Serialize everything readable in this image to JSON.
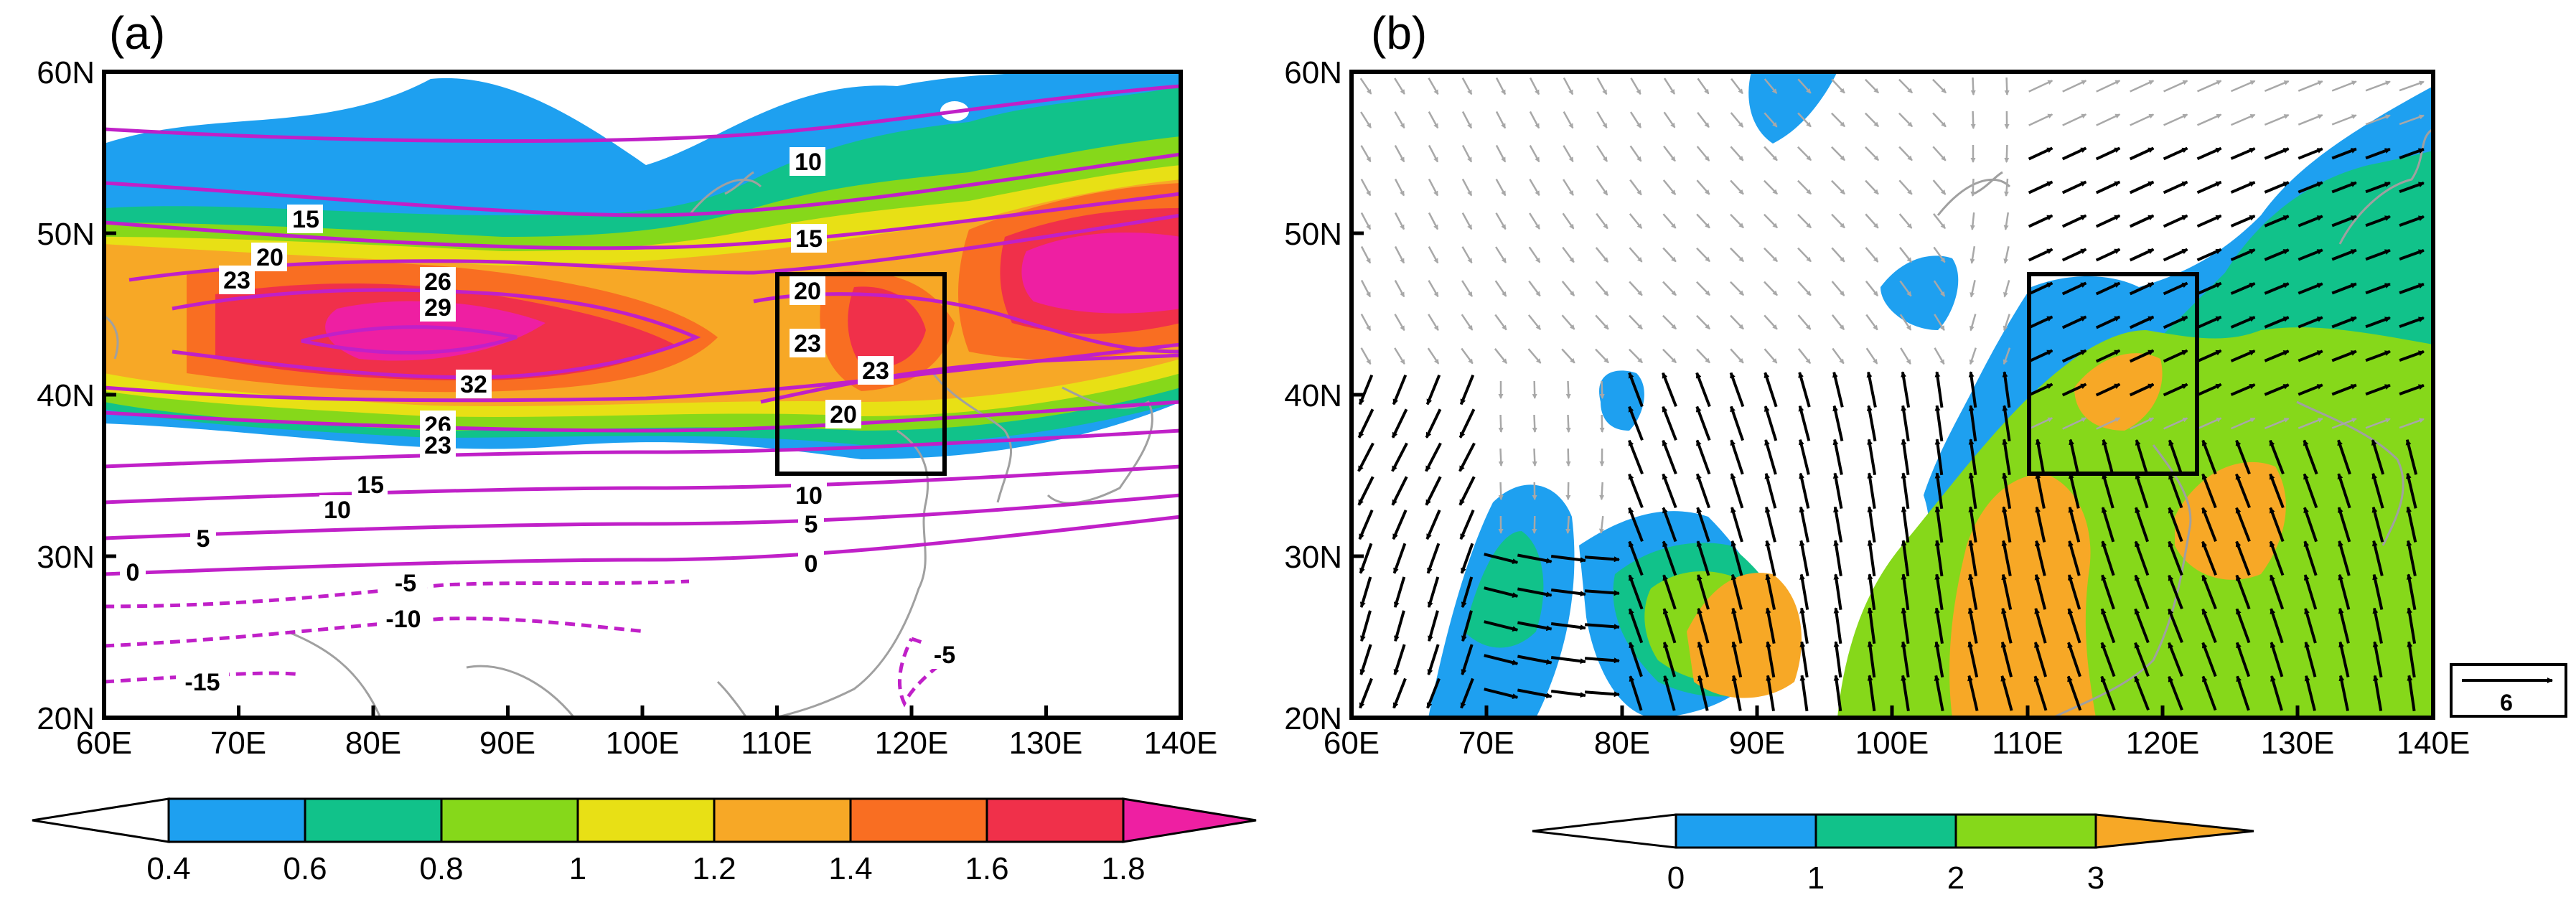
{
  "panels": [
    {
      "id": "a",
      "label": "(a)",
      "y_ticks": [
        "60N",
        "50N",
        "40N",
        "30N",
        "20N"
      ],
      "x_ticks": [
        "60E",
        "70E",
        "80E",
        "90E",
        "100E",
        "110E",
        "120E",
        "130E",
        "140E"
      ],
      "box_region": {
        "lon": [
          110,
          122
        ],
        "lat": [
          35,
          47.5
        ]
      },
      "contour_labels": [
        "10",
        "15",
        "20",
        "23",
        "26",
        "29",
        "32",
        "26",
        "23",
        "15",
        "10",
        "5",
        "0",
        "-5",
        "-10",
        "-15",
        "10",
        "15",
        "20",
        "23",
        "23",
        "20",
        "10",
        "5",
        "0",
        "-5"
      ],
      "colorbar": {
        "labels": [
          "0.4",
          "0.6",
          "0.8",
          "1",
          "1.2",
          "1.4",
          "1.6",
          "1.8"
        ],
        "colors": [
          "#ffffff",
          "#1ea0f0",
          "#11c28a",
          "#86d81a",
          "#e8e015",
          "#f7a826",
          "#f96e22",
          "#f0304a",
          "#ee1fa2"
        ]
      }
    },
    {
      "id": "b",
      "label": "(b)",
      "y_ticks": [
        "60N",
        "50N",
        "40N",
        "30N",
        "20N"
      ],
      "x_ticks": [
        "60E",
        "70E",
        "80E",
        "90E",
        "100E",
        "110E",
        "120E",
        "130E",
        "140E"
      ],
      "box_region": {
        "lon": [
          110,
          122
        ],
        "lat": [
          35,
          47.5
        ]
      },
      "reference_vector": "6",
      "colorbar": {
        "labels": [
          "0",
          "1",
          "2",
          "3"
        ],
        "colors": [
          "#ffffff",
          "#1ea0f0",
          "#11c28a",
          "#86d81a",
          "#f7a826"
        ]
      }
    }
  ],
  "colors": {
    "contour": "#c020c8",
    "coast": "#a0a0a0",
    "vector_sig": "#000000",
    "vector_insig": "#a8a8a8"
  }
}
